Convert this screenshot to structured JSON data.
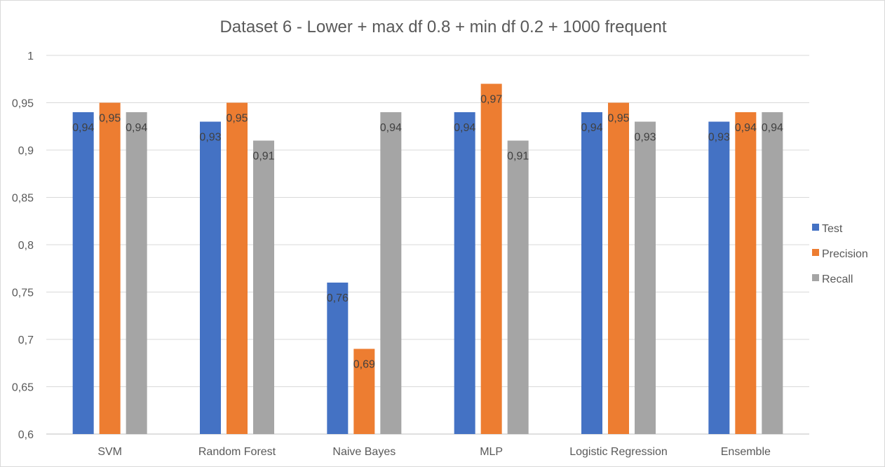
{
  "chart_data": {
    "type": "bar",
    "title": "Dataset 6 - Lower + max df 0.8 + min df 0.2 + 1000 frequent",
    "xlabel": "",
    "ylabel": "",
    "ylim": [
      0.6,
      1.0
    ],
    "ytick_step": 0.05,
    "yticks": [
      "0,6",
      "0,65",
      "0,7",
      "0,75",
      "0,8",
      "0,85",
      "0,9",
      "0,95",
      "1"
    ],
    "categories": [
      "SVM",
      "Random Forest",
      "Naive Bayes",
      "MLP",
      "Logistic Regression",
      "Ensemble"
    ],
    "series": [
      {
        "name": "Test",
        "color": "#4472c4",
        "values": [
          0.94,
          0.93,
          0.76,
          0.94,
          0.94,
          0.93
        ],
        "labels": [
          "0,94",
          "0,93",
          "0,76",
          "0,94",
          "0,94",
          "0,93"
        ]
      },
      {
        "name": "Precision",
        "color": "#ed7d31",
        "values": [
          0.95,
          0.95,
          0.69,
          0.97,
          0.95,
          0.94
        ],
        "labels": [
          "0,95",
          "0,95",
          "0,69",
          "0,97",
          "0,95",
          "0,94"
        ]
      },
      {
        "name": "Recall",
        "color": "#a5a5a5",
        "values": [
          0.94,
          0.91,
          0.94,
          0.91,
          0.93,
          0.94
        ],
        "labels": [
          "0,94",
          "0,91",
          "0,94",
          "0,91",
          "0,93",
          "0,94"
        ]
      }
    ],
    "grid": true,
    "legend_position": "right"
  }
}
